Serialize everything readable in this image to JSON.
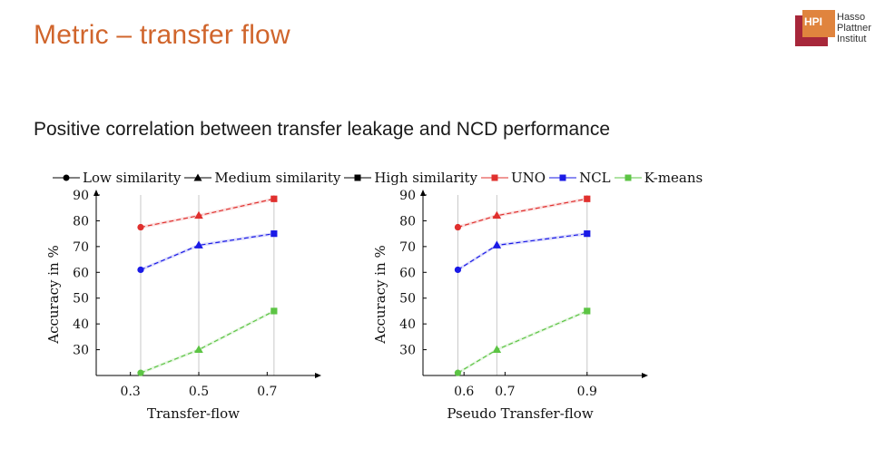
{
  "slide": {
    "title": "Metric – transfer flow",
    "subtitle": "Positive correlation between transfer leakage and NCD performance"
  },
  "logo": {
    "abbr": "HPI",
    "line1": "Hasso",
    "line2": "Plattner",
    "line3": "Institut"
  },
  "legend": [
    {
      "label": "Low similarity",
      "marker": "circle",
      "color": "#000000"
    },
    {
      "label": "Medium similarity",
      "marker": "triangle",
      "color": "#000000"
    },
    {
      "label": "High similarity",
      "marker": "square",
      "color": "#000000"
    },
    {
      "label": "UNO",
      "marker": "square",
      "color": "#e0302e"
    },
    {
      "label": "NCL",
      "marker": "square",
      "color": "#1a1ae6"
    },
    {
      "label": "K-means",
      "marker": "square",
      "color": "#5cc444"
    }
  ],
  "chart_data": [
    {
      "type": "line",
      "xlabel": "Transfer-flow",
      "ylabel": "Accuracy in %",
      "xlim": [
        0.2,
        0.8
      ],
      "ylim": [
        20,
        90
      ],
      "xticks": [
        0.3,
        0.5,
        0.7
      ],
      "xtick_labels": [
        "0.3",
        "0.5",
        "0.7"
      ],
      "yticks": [
        30,
        40,
        50,
        60,
        70,
        80,
        90
      ],
      "x": [
        0.33,
        0.5,
        0.72
      ],
      "markers": [
        "circle",
        "triangle",
        "square"
      ],
      "series": [
        {
          "name": "UNO",
          "color": "#e0302e",
          "values": [
            77.5,
            82,
            88.5
          ]
        },
        {
          "name": "NCL",
          "color": "#1a1ae6",
          "values": [
            61,
            70.5,
            75
          ]
        },
        {
          "name": "K-means",
          "color": "#5cc444",
          "values": [
            21,
            30,
            45
          ]
        }
      ]
    },
    {
      "type": "line",
      "xlabel": "Pseudo Transfer-flow",
      "ylabel": "Accuracy in %",
      "xlim": [
        0.5,
        1.0
      ],
      "ylim": [
        20,
        90
      ],
      "xticks": [
        0.6,
        0.7,
        0.9
      ],
      "xtick_labels": [
        "0.6",
        "0.7",
        "0.9"
      ],
      "yticks": [
        30,
        40,
        50,
        60,
        70,
        80,
        90
      ],
      "x": [
        0.585,
        0.68,
        0.9
      ],
      "markers": [
        "circle",
        "triangle",
        "square"
      ],
      "series": [
        {
          "name": "UNO",
          "color": "#e0302e",
          "values": [
            77.5,
            82,
            88.5
          ]
        },
        {
          "name": "NCL",
          "color": "#1a1ae6",
          "values": [
            61,
            70.5,
            75
          ]
        },
        {
          "name": "K-means",
          "color": "#5cc444",
          "values": [
            21,
            30,
            45
          ]
        }
      ]
    }
  ]
}
